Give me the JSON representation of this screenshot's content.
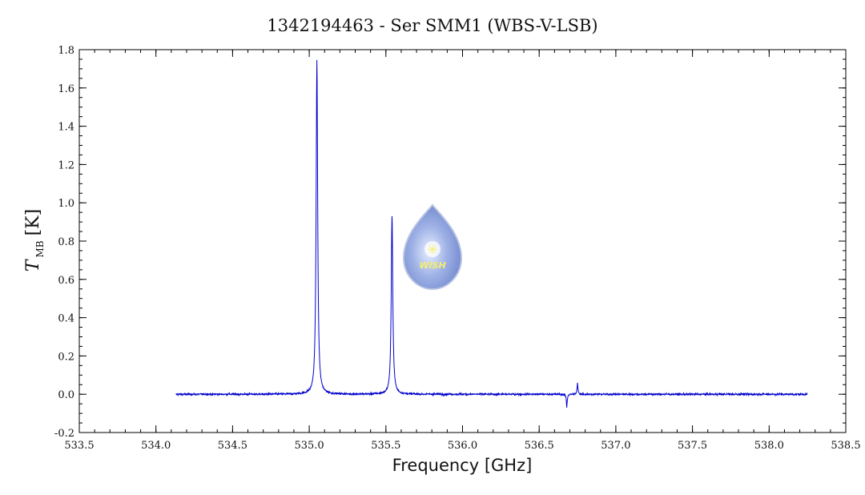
{
  "chart_data": {
    "type": "line",
    "title": "1342194463 - Ser SMM1 (WBS-V-LSB)",
    "xlabel": "Frequency [GHz]",
    "ylabel": {
      "symbol": "T",
      "subscript": "MB",
      "unit": "[K]"
    },
    "xlim": [
      533.5,
      538.5
    ],
    "ylim": [
      -0.2,
      1.8
    ],
    "x_ticks": [
      "533.5",
      "534.0",
      "534.5",
      "535.0",
      "535.5",
      "536.0",
      "536.5",
      "537.0",
      "537.5",
      "538.0",
      "538.5"
    ],
    "y_ticks": [
      "-0.2",
      "0.0",
      "0.2",
      "0.4",
      "0.6",
      "0.8",
      "1.0",
      "1.2",
      "1.4",
      "1.6",
      "1.8"
    ],
    "grid": false,
    "series": [
      {
        "color": "#0000cc",
        "x_range": [
          534.13,
          538.25
        ],
        "baseline": 0.0,
        "noise_rms": 0.005,
        "features": [
          {
            "x": 535.05,
            "peak": 1.74,
            "note": "strongest line"
          },
          {
            "x": 535.54,
            "peak": 0.93
          },
          {
            "x": 536.68,
            "peak": -0.07
          },
          {
            "x": 536.75,
            "peak": 0.06
          }
        ]
      }
    ],
    "logo": {
      "text": "WISH"
    }
  }
}
